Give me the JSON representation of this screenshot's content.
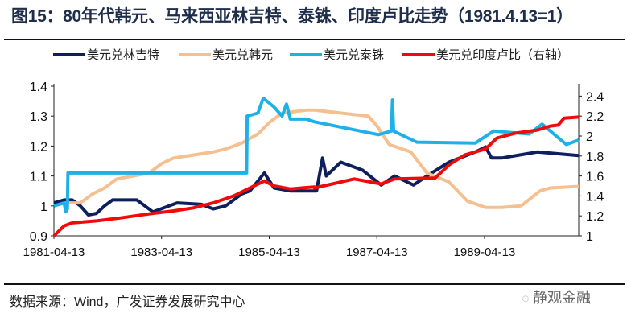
{
  "title": "图15：80年代韩元、马来西亚林吉特、泰铢、印度卢比走势（1981.4.13=1）",
  "source": "数据来源：Wind，广发证券发展研究中心",
  "watermark": "静观金融",
  "chart_data": {
    "type": "line",
    "title": "80年代韩元、马来西亚林吉特、泰铢、印度卢比走势（1981.4.13=1）",
    "x_unit": "decimal year",
    "xlim": [
      1981.28,
      1991.03
    ],
    "x_ticks": [
      {
        "label": "1981-04-13",
        "value": 1981.28
      },
      {
        "label": "1983-04-13",
        "value": 1983.28
      },
      {
        "label": "1985-04-13",
        "value": 1985.28
      },
      {
        "label": "1987-04-13",
        "value": 1987.28
      },
      {
        "label": "1989-04-13",
        "value": 1989.28
      }
    ],
    "y_left": {
      "ylim": [
        0.9,
        1.4
      ],
      "ticks": [
        "0.9",
        "1",
        "1.1",
        "1.2",
        "1.3",
        "1.4"
      ]
    },
    "y_right": {
      "ylim": [
        1.0,
        2.5
      ],
      "ticks": [
        "1",
        "1.2",
        "1.4",
        "1.6",
        "1.8",
        "2",
        "2.2",
        "2.4"
      ],
      "label": "右轴"
    },
    "legend_position": "top",
    "series": [
      {
        "name": "美元兑林吉特",
        "color": "#0d1f5c",
        "axis": "left",
        "points": [
          [
            1981.28,
            1.01
          ],
          [
            1981.47,
            1.02
          ],
          [
            1981.62,
            1.02
          ],
          [
            1981.77,
            1.0
          ],
          [
            1981.92,
            0.97
          ],
          [
            1982.07,
            0.975
          ],
          [
            1982.22,
            1.0
          ],
          [
            1982.37,
            1.02
          ],
          [
            1982.52,
            1.02
          ],
          [
            1982.82,
            1.02
          ],
          [
            1982.97,
            1.0
          ],
          [
            1983.12,
            0.98
          ],
          [
            1983.42,
            1.0
          ],
          [
            1983.57,
            1.01
          ],
          [
            1984.02,
            1.005
          ],
          [
            1984.24,
            0.99
          ],
          [
            1984.47,
            1.0
          ],
          [
            1984.77,
            1.04
          ],
          [
            1984.92,
            1.05
          ],
          [
            1985.19,
            1.11
          ],
          [
            1985.37,
            1.06
          ],
          [
            1985.67,
            1.05
          ],
          [
            1985.97,
            1.05
          ],
          [
            1986.16,
            1.05
          ],
          [
            1986.27,
            1.16
          ],
          [
            1986.34,
            1.1
          ],
          [
            1986.61,
            1.146
          ],
          [
            1987.01,
            1.12
          ],
          [
            1987.36,
            1.07
          ],
          [
            1987.61,
            1.1
          ],
          [
            1987.96,
            1.07
          ],
          [
            1988.21,
            1.1
          ],
          [
            1988.62,
            1.146
          ],
          [
            1989.11,
            1.18
          ],
          [
            1989.3,
            1.197
          ],
          [
            1989.41,
            1.16
          ],
          [
            1989.6,
            1.16
          ],
          [
            1990.26,
            1.18
          ],
          [
            1991.03,
            1.168
          ]
        ]
      },
      {
        "name": "美元兑韩元",
        "color": "#f5c08f",
        "axis": "left",
        "points": [
          [
            1981.53,
            1.01
          ],
          [
            1981.77,
            1.01
          ],
          [
            1982.0,
            1.04
          ],
          [
            1982.22,
            1.06
          ],
          [
            1982.45,
            1.09
          ],
          [
            1982.75,
            1.1
          ],
          [
            1983.05,
            1.11
          ],
          [
            1983.27,
            1.14
          ],
          [
            1983.5,
            1.16
          ],
          [
            1983.87,
            1.17
          ],
          [
            1984.24,
            1.18
          ],
          [
            1984.47,
            1.19
          ],
          [
            1984.77,
            1.21
          ],
          [
            1985.07,
            1.24
          ],
          [
            1985.29,
            1.28
          ],
          [
            1985.52,
            1.31
          ],
          [
            1985.97,
            1.32
          ],
          [
            1986.12,
            1.32
          ],
          [
            1987.12,
            1.3
          ],
          [
            1987.27,
            1.27
          ],
          [
            1987.51,
            1.205
          ],
          [
            1987.91,
            1.18
          ],
          [
            1988.21,
            1.11
          ],
          [
            1988.62,
            1.08
          ],
          [
            1988.96,
            1.016
          ],
          [
            1989.3,
            0.995
          ],
          [
            1989.6,
            0.995
          ],
          [
            1989.96,
            1.0
          ],
          [
            1990.31,
            1.05
          ],
          [
            1990.5,
            1.06
          ],
          [
            1991.03,
            1.065
          ]
        ]
      },
      {
        "name": "美元兑泰铢",
        "color": "#1fb0e8",
        "axis": "left",
        "points": [
          [
            1981.28,
            1.0
          ],
          [
            1981.47,
            1.01
          ],
          [
            1981.5,
            0.98
          ],
          [
            1981.53,
            0.99
          ],
          [
            1981.54,
            1.11
          ],
          [
            1982.5,
            1.11
          ],
          [
            1983.5,
            1.11
          ],
          [
            1984.5,
            1.11
          ],
          [
            1984.86,
            1.11
          ],
          [
            1984.87,
            1.3
          ],
          [
            1985.07,
            1.31
          ],
          [
            1985.17,
            1.36
          ],
          [
            1985.37,
            1.33
          ],
          [
            1985.52,
            1.3
          ],
          [
            1985.6,
            1.34
          ],
          [
            1985.67,
            1.29
          ],
          [
            1985.97,
            1.29
          ],
          [
            1986.12,
            1.281
          ],
          [
            1987.31,
            1.238
          ],
          [
            1987.55,
            1.25
          ],
          [
            1987.57,
            1.354
          ],
          [
            1987.59,
            1.25
          ],
          [
            1988.02,
            1.213
          ],
          [
            1989.11,
            1.21
          ],
          [
            1989.45,
            1.25
          ],
          [
            1990.11,
            1.24
          ],
          [
            1990.35,
            1.273
          ],
          [
            1990.8,
            1.205
          ],
          [
            1991.03,
            1.22
          ]
        ]
      },
      {
        "name": "美元兑印度卢比（右轴）",
        "color": "#f00a0a",
        "axis": "right",
        "points": [
          [
            1981.28,
            1.0
          ],
          [
            1981.47,
            1.1
          ],
          [
            1981.62,
            1.13
          ],
          [
            1982.07,
            1.15
          ],
          [
            1982.52,
            1.18
          ],
          [
            1983.05,
            1.22
          ],
          [
            1983.5,
            1.25
          ],
          [
            1983.87,
            1.28
          ],
          [
            1984.24,
            1.33
          ],
          [
            1984.62,
            1.4
          ],
          [
            1984.92,
            1.48
          ],
          [
            1985.19,
            1.55
          ],
          [
            1985.37,
            1.5
          ],
          [
            1985.67,
            1.47
          ],
          [
            1986.12,
            1.49
          ],
          [
            1986.12,
            1.48
          ],
          [
            1986.86,
            1.57
          ],
          [
            1987.36,
            1.52
          ],
          [
            1987.61,
            1.57
          ],
          [
            1988.36,
            1.58
          ],
          [
            1988.62,
            1.71
          ],
          [
            1988.91,
            1.81
          ],
          [
            1989.3,
            1.87
          ],
          [
            1989.51,
            1.98
          ],
          [
            1989.86,
            2.03
          ],
          [
            1990.26,
            2.06
          ],
          [
            1990.5,
            2.1
          ],
          [
            1990.65,
            2.11
          ],
          [
            1990.76,
            2.18
          ],
          [
            1991.03,
            2.19
          ]
        ]
      }
    ]
  }
}
